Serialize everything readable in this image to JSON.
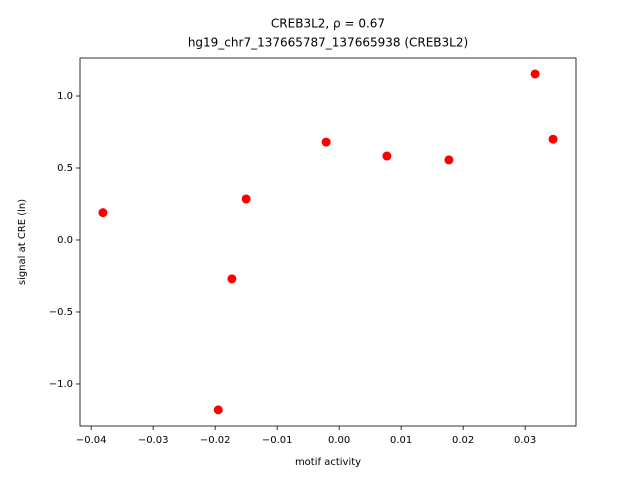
{
  "chart_data": {
    "type": "scatter",
    "title": "CREB3L2, ρ = 0.67",
    "subtitle": "hg19_chr7_137665787_137665938 (CREB3L2)",
    "x_label": "motif activity",
    "y_label": "signal at CRE (ln)",
    "series": [
      {
        "color": "#ff0000",
        "x": [
          -0.0381,
          -0.0195,
          -0.0173,
          -0.015,
          -0.0021,
          0.0077,
          0.0177,
          0.0316,
          0.0345
        ],
        "values": [
          0.19,
          -1.18,
          -0.27,
          0.285,
          0.68,
          0.583,
          0.556,
          1.153,
          0.7
        ]
      }
    ],
    "xlim": [
      -0.0418,
      0.0382
    ],
    "ylim": [
      -1.292,
      1.264
    ],
    "xticks": [
      {
        "value": -0.04,
        "label": "−0.04"
      },
      {
        "value": -0.03,
        "label": "−0.03"
      },
      {
        "value": -0.02,
        "label": "−0.02"
      },
      {
        "value": -0.01,
        "label": "−0.01"
      },
      {
        "value": 0,
        "label": "0.00"
      },
      0.01,
      0.02,
      0.03
    ],
    "yticks": [
      {
        "value": -1,
        "label": "−1.0"
      },
      {
        "value": -0.5,
        "label": "−0.5"
      },
      {
        "value": 0,
        "label": "0.0"
      },
      0.5,
      {
        "value": 1,
        "label": "1.0"
      }
    ],
    "grid": false
  }
}
